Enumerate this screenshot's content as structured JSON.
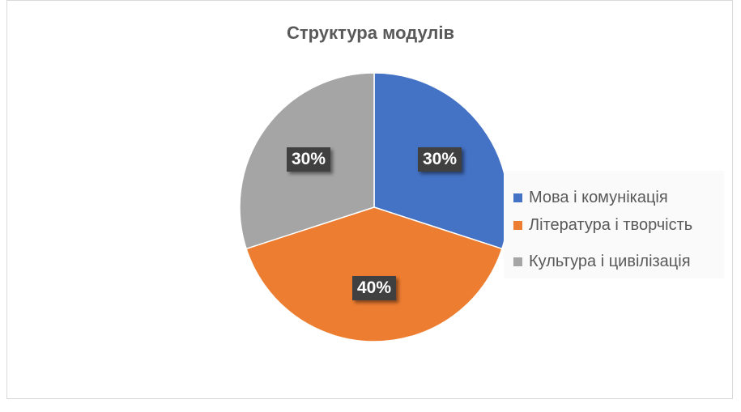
{
  "chart_data": {
    "type": "pie",
    "title": "Структура модулів",
    "categories": [
      "Мова і комунікація",
      "Література і творчість",
      "Культура і цивілізація"
    ],
    "values": [
      30,
      40,
      30
    ],
    "data_labels": [
      "30%",
      "40%",
      "30%"
    ],
    "colors": [
      "#4472C4",
      "#ED7D31",
      "#A5A5A5"
    ],
    "legend_position": "right",
    "start_angle": "top, clockwise"
  }
}
